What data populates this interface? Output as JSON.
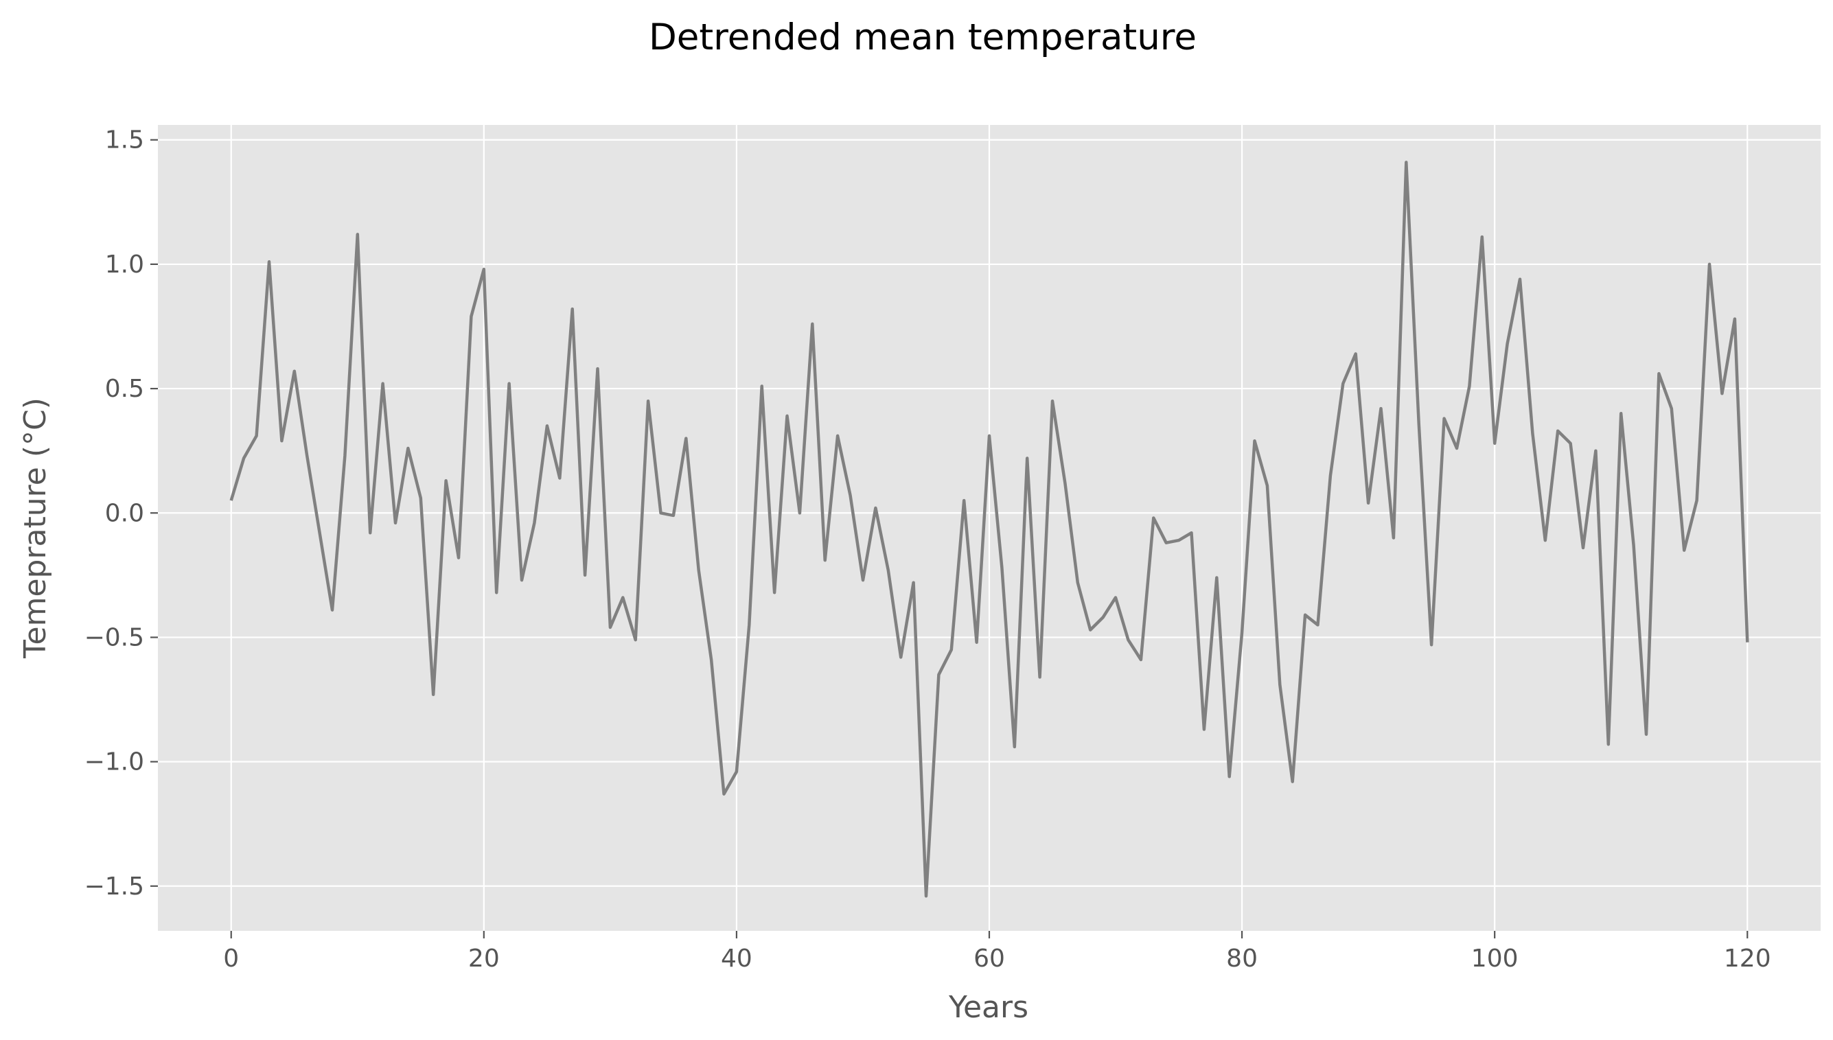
{
  "chart_data": {
    "type": "line",
    "title": "Detrended mean temperature",
    "xlabel": "Years",
    "ylabel": "Temeprature (°C)",
    "xlim": [
      -5.8,
      125.8
    ],
    "ylim": [
      -1.68,
      1.56
    ],
    "xticks": [
      0,
      20,
      40,
      60,
      80,
      100,
      120
    ],
    "xtick_labels": [
      "0",
      "20",
      "40",
      "60",
      "80",
      "100",
      "120"
    ],
    "yticks": [
      -1.5,
      -1.0,
      -0.5,
      0.0,
      0.5,
      1.0,
      1.5
    ],
    "ytick_labels": [
      "−1.5",
      "−1.0",
      "−0.5",
      "0.0",
      "0.5",
      "1.0",
      "1.5"
    ],
    "grid": true,
    "colors": {
      "background": "#e5e5e5",
      "line": "#808080",
      "text": "#555555"
    },
    "series": [
      {
        "x": [
          0,
          1,
          2,
          3,
          4,
          5,
          6,
          7,
          8,
          9,
          10,
          11,
          12,
          13,
          14,
          15,
          16,
          17,
          18,
          19,
          20,
          21,
          22,
          23,
          24,
          25,
          26,
          27,
          28,
          29,
          30,
          31,
          32,
          33,
          34,
          35,
          36,
          37,
          38,
          39,
          40,
          41,
          42,
          43,
          44,
          45,
          46,
          47,
          48,
          49,
          50,
          51,
          52,
          53,
          54,
          55,
          56,
          57,
          58,
          59,
          60,
          61,
          62,
          63,
          64,
          65,
          66,
          67,
          68,
          69,
          70,
          71,
          72,
          73,
          74,
          75,
          76,
          77,
          78,
          79,
          80,
          81,
          82,
          83,
          84,
          85,
          86,
          87,
          88,
          89,
          90,
          91,
          92,
          93,
          94,
          95,
          96,
          97,
          98,
          99,
          100,
          101,
          102,
          103,
          104,
          105,
          106,
          107,
          108,
          109,
          110,
          111,
          112,
          113,
          114,
          115,
          116,
          117,
          118,
          119,
          120
        ],
        "values": [
          0.05,
          0.22,
          0.31,
          1.01,
          0.29,
          0.57,
          0.23,
          -0.08,
          -0.39,
          0.23,
          1.12,
          -0.08,
          0.52,
          -0.04,
          0.26,
          0.06,
          -0.73,
          0.13,
          -0.18,
          0.79,
          0.98,
          -0.32,
          0.52,
          -0.27,
          -0.04,
          0.35,
          0.14,
          0.82,
          -0.25,
          0.58,
          -0.46,
          -0.34,
          -0.51,
          0.45,
          0.0,
          -0.01,
          0.3,
          -0.23,
          -0.59,
          -1.13,
          -1.04,
          -0.45,
          0.51,
          -0.32,
          0.39,
          0.0,
          0.76,
          -0.19,
          0.31,
          0.07,
          -0.27,
          0.02,
          -0.23,
          -0.58,
          -0.28,
          -1.54,
          -0.65,
          -0.55,
          0.05,
          -0.52,
          0.31,
          -0.22,
          -0.94,
          0.22,
          -0.66,
          0.45,
          0.12,
          -0.28,
          -0.47,
          -0.42,
          -0.34,
          -0.51,
          -0.59,
          -0.02,
          -0.12,
          -0.11,
          -0.08,
          -0.87,
          -0.26,
          -1.06,
          -0.48,
          0.29,
          0.11,
          -0.69,
          -1.08,
          -0.41,
          -0.45,
          0.15,
          0.52,
          0.64,
          0.04,
          0.42,
          -0.1,
          1.41,
          0.36,
          -0.53,
          0.38,
          0.26,
          0.51,
          1.11,
          0.28,
          0.68,
          0.94,
          0.32,
          -0.11,
          0.33,
          0.28,
          -0.14,
          0.25,
          -0.93,
          0.4,
          -0.13,
          -0.89,
          0.56,
          0.42,
          -0.15,
          0.05,
          1.0,
          0.48,
          0.78,
          -0.52
        ]
      }
    ]
  }
}
